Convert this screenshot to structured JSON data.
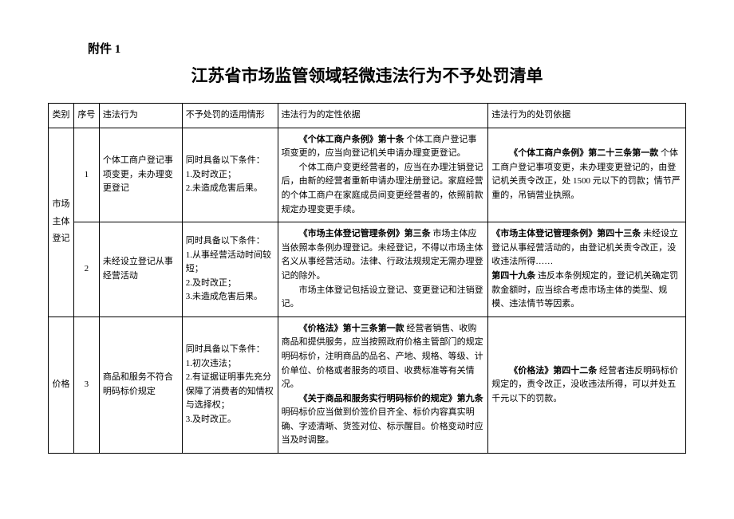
{
  "attachment_label": "附件 1",
  "title": "江苏省市场监管领域轻微违法行为不予处罚清单",
  "headers": {
    "category": "类别",
    "seq": "序号",
    "violation": "违法行为",
    "condition": "不予处罚的适用情形",
    "basis": "违法行为的定性依据",
    "penalty": "违法行为的处罚依据"
  },
  "categories": {
    "market": {
      "c1": "市场",
      "c2": "主体",
      "c3": "登记"
    },
    "price": "价格"
  },
  "rows": {
    "r1": {
      "seq": "1",
      "violation": "个体工商户登记事项变更，未办理变更登记",
      "condition_intro": "同时具备以下条件：",
      "condition_1": "1.及时改正；",
      "condition_2": "2.未造成危害后果。",
      "basis_bold1": "《个体工商户条例》第十条",
      "basis_text1": " 个体工商户登记事项变更的，应当向登记机关申请办理变更登记。",
      "basis_text2": "个体工商户变更经营者的，应当在办理注销登记后，由新的经营者重新申请办理注册登记。家庭经营的个体工商户在家庭成员间变更经营者的，依照前款规定办理变更手续。",
      "penalty_bold": "《个体工商户条例》第二十三条第一款",
      "penalty_text": " 个体工商户登记事项变更，未办理变更登记的，由登记机关责令改正，处 1500 元以下的罚款；情节严重的，吊销营业执照。"
    },
    "r2": {
      "seq": "2",
      "violation": "未经设立登记从事经营活动",
      "condition_intro": "同时具备以下条件：",
      "condition_1": "1.从事经营活动时间较短；",
      "condition_2": "2.及时改正；",
      "condition_3": "3.未造成危害后果。",
      "basis_bold1": "《市场主体登记管理条例》第三条",
      "basis_text1": " 市场主体应当依照本条例办理登记。未经登记，不得以市场主体名义从事经营活动。法律、行政法规规定无需办理登记的除外。",
      "basis_text2": "市场主体登记包括设立登记、变更登记和注销登记。",
      "penalty_bold1": "《市场主体登记管理条例》第四十三条",
      "penalty_text1": " 未经设立登记从事经营活动的，由登记机关责令改正，没收违法所得……",
      "penalty_bold2": "第四十九条",
      "penalty_text2": " 违反本条例规定的，登记机关确定罚款金额时，应当综合考虑市场主体的类型、规模、违法情节等因素。"
    },
    "r3": {
      "seq": "3",
      "violation": "商品和服务不符合明码标价规定",
      "condition_intro": "同时具备以下条件：",
      "condition_1": "1.初次违法；",
      "condition_2": "2.有证据证明事先充分保障了消费者的知情权与选择权；",
      "condition_3": "3.及时改正。",
      "basis_bold1": "《价格法》第十三条第一款",
      "basis_text1": " 经营者销售、收购商品和提供服务，应当按照政府价格主管部门的规定明码标价，注明商品的品名、产地、规格、等级、计价单位、价格或者服务的项目、收费标准等有关情况。",
      "basis_bold2": "《关于商品和服务实行明码标价的规定》第九条",
      "basis_text2": " 明码标价应当做到价签价目齐全、标价内容真实明确、字迹清晰、货签对位、标示醒目。价格变动时应当及时调整。",
      "penalty_bold": "《价格法》第四十二条",
      "penalty_text": " 经营者违反明码标价规定的，责令改正，没收违法所得，可以并处五千元以下的罚款。"
    }
  }
}
